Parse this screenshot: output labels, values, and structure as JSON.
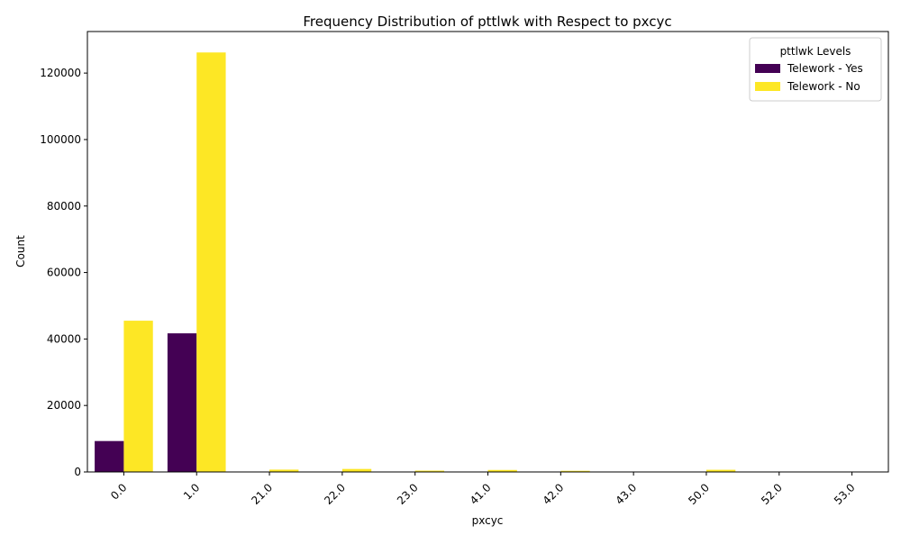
{
  "chart_data": {
    "type": "bar",
    "title": "Frequency Distribution of pttlwk with Respect to pxcyc",
    "xlabel": "pxcyc",
    "ylabel": "Count",
    "categories": [
      "0.0",
      "1.0",
      "21.0",
      "22.0",
      "23.0",
      "41.0",
      "42.0",
      "43.0",
      "50.0",
      "52.0",
      "53.0"
    ],
    "series": [
      {
        "name": "Telework - Yes",
        "color": "#440154",
        "values": [
          9300,
          41700,
          0,
          0,
          0,
          0,
          0,
          0,
          0,
          0,
          0
        ]
      },
      {
        "name": "Telework - No",
        "color": "#fde725",
        "values": [
          45500,
          126200,
          700,
          900,
          400,
          600,
          350,
          0,
          650,
          0,
          0
        ]
      }
    ],
    "ylim": [
      0,
      132500
    ],
    "yticks": [
      0,
      20000,
      40000,
      60000,
      80000,
      100000,
      120000
    ],
    "legend": {
      "title": "pttlwk Levels",
      "placement": "top-right"
    },
    "grid": false,
    "x_tick_rotation": 45
  }
}
